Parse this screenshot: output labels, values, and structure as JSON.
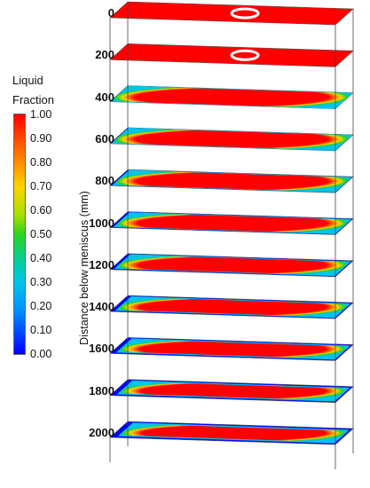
{
  "legend": {
    "title_line1": "Liquid",
    "title_line2": "Fraction",
    "ticks": [
      "1.00",
      "0.90",
      "0.80",
      "0.70",
      "0.60",
      "0.50",
      "0.40",
      "0.30",
      "0.20",
      "0.10",
      "0.00"
    ]
  },
  "axis": {
    "label": "Distance below meniscus (mm)"
  },
  "colors": {
    "liquid": "#ff0000",
    "mushy_high": "#ffd200",
    "mushy_mid": "#2dd41c",
    "mushy_low": "#00c4ea",
    "solid": "#0000ff"
  },
  "slices": [
    {
      "depth": "0",
      "liquid_core_fraction": 1.0,
      "has_nozzle": true
    },
    {
      "depth": "200",
      "liquid_core_fraction": 1.0,
      "has_nozzle": true
    },
    {
      "depth": "400",
      "liquid_core_fraction": 0.98,
      "has_nozzle": false
    },
    {
      "depth": "600",
      "liquid_core_fraction": 0.96,
      "has_nozzle": false
    },
    {
      "depth": "800",
      "liquid_core_fraction": 0.93,
      "has_nozzle": false
    },
    {
      "depth": "1000",
      "liquid_core_fraction": 0.89,
      "has_nozzle": false
    },
    {
      "depth": "1200",
      "liquid_core_fraction": 0.86,
      "has_nozzle": false
    },
    {
      "depth": "1400",
      "liquid_core_fraction": 0.83,
      "has_nozzle": false
    },
    {
      "depth": "1600",
      "liquid_core_fraction": 0.8,
      "has_nozzle": false
    },
    {
      "depth": "1800",
      "liquid_core_fraction": 0.77,
      "has_nozzle": false
    },
    {
      "depth": "2000",
      "liquid_core_fraction": 0.74,
      "has_nozzle": false
    }
  ]
}
